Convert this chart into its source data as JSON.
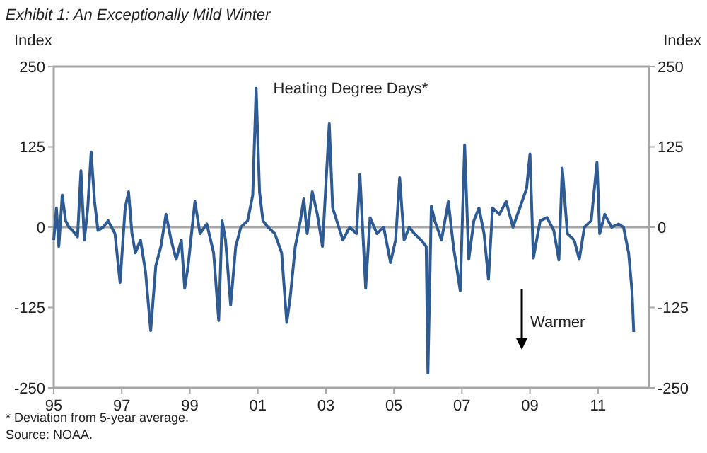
{
  "chart_data": {
    "type": "line",
    "title": "Exhibit 1: An Exceptionally Mild Winter",
    "ylabel": "Index",
    "y2label": "Index",
    "annotations": [
      "Heating Degree Days*",
      "Warmer",
      "* Deviation from 5-year average.",
      "Source: NOAA."
    ],
    "x": [
      1995,
      1995.08,
      1995.15,
      1995.25,
      1995.35,
      1995.45,
      1995.55,
      1995.7,
      1995.8,
      1995.9,
      1996.0,
      1996.1,
      1996.2,
      1996.3,
      1996.45,
      1996.6,
      1996.8,
      1996.95,
      1997.1,
      1997.2,
      1997.3,
      1997.4,
      1997.55,
      1997.7,
      1997.85,
      1998.0,
      1998.15,
      1998.3,
      1998.45,
      1998.6,
      1998.75,
      1998.85,
      1998.95,
      1999.15,
      1999.3,
      1999.5,
      1999.7,
      1999.85,
      1999.95,
      2000.05,
      2000.2,
      2000.35,
      2000.5,
      2000.7,
      2000.85,
      2000.95,
      2001.05,
      2001.15,
      2001.3,
      2001.5,
      2001.7,
      2001.85,
      2001.95,
      2002.1,
      2002.25,
      2002.35,
      2002.45,
      2002.6,
      2002.75,
      2002.9,
      2003.1,
      2003.2,
      2003.35,
      2003.5,
      2003.7,
      2003.9,
      2004.0,
      2004.17,
      2004.3,
      2004.5,
      2004.7,
      2004.9,
      2005.05,
      2005.17,
      2005.3,
      2005.45,
      2005.6,
      2005.8,
      2005.95,
      2006.0,
      2006.1,
      2006.2,
      2006.4,
      2006.6,
      2006.75,
      2006.95,
      2007.08,
      2007.2,
      2007.35,
      2007.5,
      2007.65,
      2007.78,
      2007.9,
      2008.1,
      2008.3,
      2008.5,
      2008.7,
      2008.9,
      2009.0,
      2009.1,
      2009.3,
      2009.5,
      2009.7,
      2009.85,
      2009.95,
      2010.1,
      2010.3,
      2010.45,
      2010.6,
      2010.8,
      2010.97,
      2011.05,
      2011.2,
      2011.4,
      2011.6,
      2011.75,
      2011.9,
      2012.0,
      2012.05
    ],
    "series": [
      {
        "color": "#2e5b94",
        "values": [
          -20,
          30,
          -30,
          50,
          10,
          0,
          -5,
          -15,
          88,
          -20,
          30,
          117,
          40,
          -5,
          0,
          10,
          -10,
          -86,
          30,
          55,
          -10,
          -40,
          -20,
          -70,
          -161,
          -60,
          -30,
          20,
          -20,
          -50,
          -20,
          -95,
          -60,
          40,
          -10,
          5,
          -40,
          -145,
          10,
          -20,
          -121,
          -30,
          0,
          10,
          50,
          216,
          55,
          10,
          0,
          -10,
          -40,
          -148,
          -110,
          -30,
          10,
          44,
          -10,
          55,
          20,
          -30,
          161,
          30,
          5,
          -20,
          0,
          -10,
          82,
          -95,
          15,
          -10,
          0,
          -55,
          -20,
          77,
          -20,
          0,
          -10,
          -20,
          -30,
          -227,
          33,
          10,
          -20,
          40,
          -30,
          -99,
          128,
          -50,
          10,
          30,
          -10,
          -81,
          30,
          20,
          40,
          0,
          30,
          60,
          114,
          -48,
          10,
          15,
          -5,
          -51,
          92,
          -10,
          -20,
          -50,
          0,
          10,
          101,
          -10,
          20,
          0,
          5,
          0,
          -40,
          -100,
          -163
        ]
      }
    ],
    "xlim": [
      1995,
      2012.5
    ],
    "xticks": [
      {
        "value": 1995,
        "label": "95"
      },
      {
        "value": 1997,
        "label": "97"
      },
      {
        "value": 1999,
        "label": "99"
      },
      {
        "value": 2001,
        "label": "01"
      },
      {
        "value": 2003,
        "label": "03"
      },
      {
        "value": 2005,
        "label": "05"
      },
      {
        "value": 2007,
        "label": "07"
      },
      {
        "value": 2009,
        "label": "09"
      },
      {
        "value": 2011,
        "label": "11"
      }
    ],
    "ylim": [
      -250,
      250
    ],
    "yticks": [
      -250,
      -125,
      0,
      125,
      250
    ],
    "y2lim": [
      -250,
      250
    ],
    "y2ticks": [
      -250,
      -125,
      0,
      125,
      250
    ],
    "ref_lines": [
      {
        "axis": "y",
        "value": 0,
        "color": "#a6a6a6"
      }
    ],
    "grid": false,
    "marker": "none",
    "line_style": "solid"
  }
}
